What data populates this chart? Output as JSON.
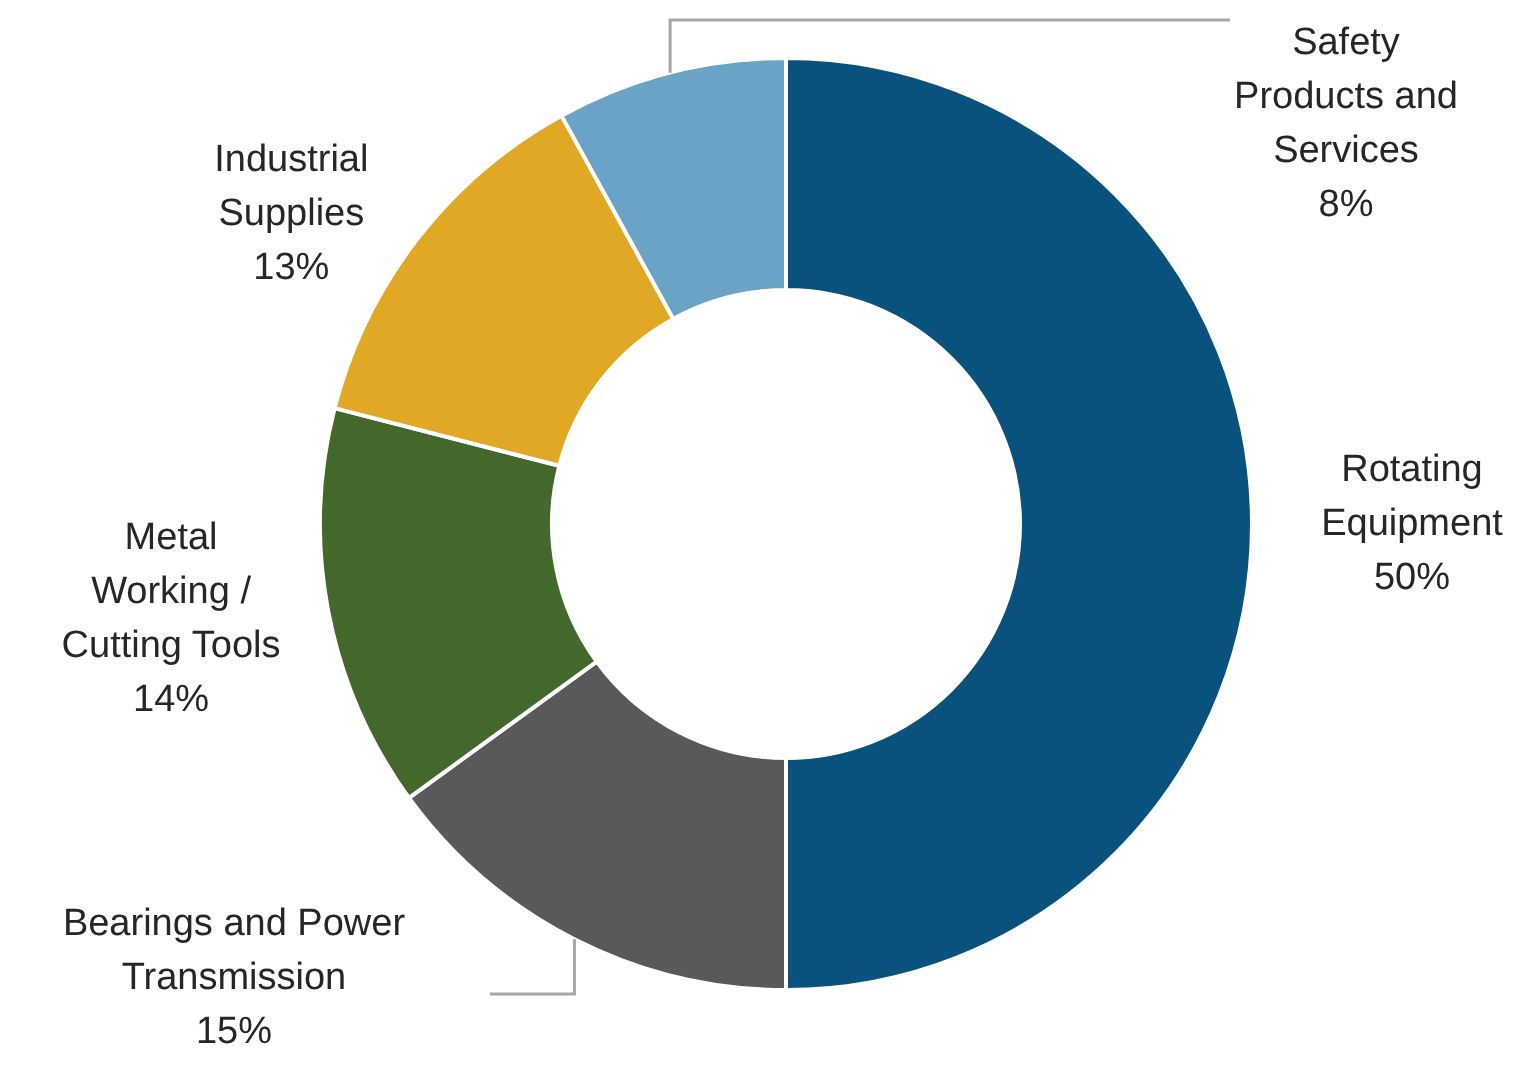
{
  "chart_data": {
    "type": "donut",
    "categories": [
      "Rotating\nEquipment",
      "Bearings and Power\nTransmission",
      "Metal\nWorking /\nCutting Tools",
      "Industrial\nSupplies",
      "Safety\nProducts and\nServices"
    ],
    "values": [
      50,
      15,
      14,
      13,
      8
    ],
    "value_labels": [
      "50%",
      "15%",
      "14%",
      "13%",
      "8%"
    ],
    "colors": [
      "#0a527e",
      "#58595b",
      "#44682b",
      "#e0a825",
      "#6aa3c5"
    ]
  }
}
